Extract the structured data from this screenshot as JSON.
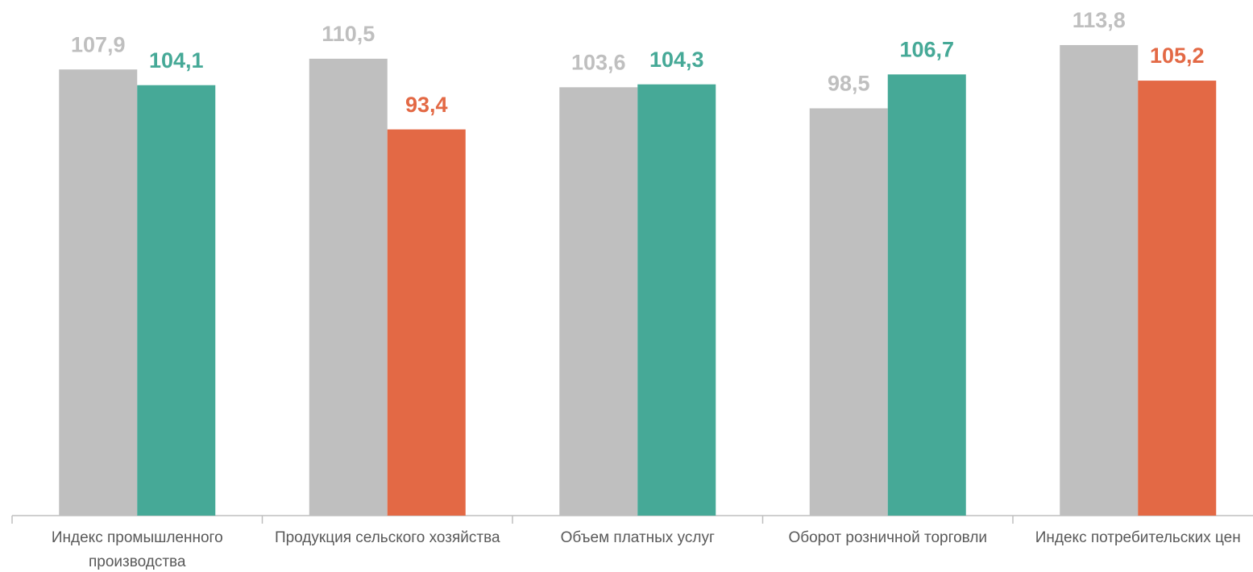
{
  "chart_data": {
    "type": "bar",
    "categories": [
      "Индекс промышленного производства",
      "Продукция сельского хозяйства",
      "Объем платных услуг",
      "Оборот розничной торговли",
      "Индекс потребительских цен"
    ],
    "series": [
      {
        "color": "#bfbfbf",
        "values": [
          107.9,
          110.5,
          103.6,
          98.5,
          113.8
        ],
        "value_labels": [
          "107,9",
          "110,5",
          "103,6",
          "98,5",
          "113,8"
        ]
      },
      {
        "colors": [
          "#46a997",
          "#e36945",
          "#46a997",
          "#46a997",
          "#e36945"
        ],
        "values": [
          104.1,
          93.4,
          104.3,
          106.7,
          105.2
        ],
        "value_labels": [
          "104,1",
          "93,4",
          "104,3",
          "106,7",
          "105,2"
        ]
      }
    ],
    "ylim": [
      0,
      124.7
    ]
  }
}
